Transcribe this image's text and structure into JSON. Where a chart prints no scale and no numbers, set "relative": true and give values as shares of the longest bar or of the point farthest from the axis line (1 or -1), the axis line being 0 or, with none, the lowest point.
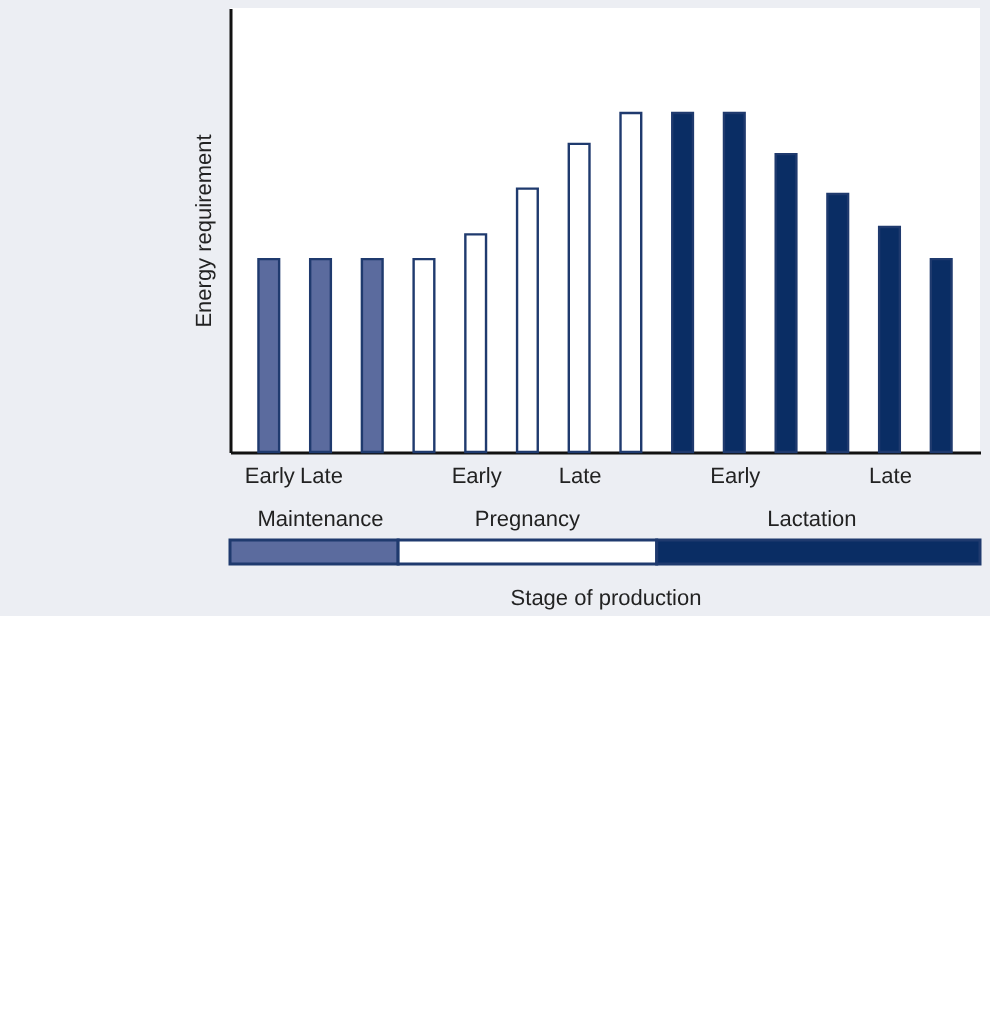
{
  "chart_data": {
    "type": "bar",
    "relative": true,
    "xlabel": "Stage of production",
    "ylabel": "Energy requirement",
    "categories": [
      "Early",
      "Late",
      null,
      null,
      "Early",
      null,
      "Late",
      null,
      null,
      "Early",
      null,
      null,
      "Late",
      null
    ],
    "values": [
      0.569,
      0.569,
      0.569,
      0.569,
      0.642,
      0.777,
      0.909,
      1,
      1,
      1,
      0.879,
      0.761,
      0.664,
      0.569
    ],
    "colors": [
      "#5b6b9e",
      "#5b6b9e",
      "#5b6b9e",
      "#ffffff",
      "#ffffff",
      "#ffffff",
      "#ffffff",
      "#ffffff",
      "#0a2d64",
      "#0a2d64",
      "#0a2d64",
      "#0a2d64",
      "#0a2d64",
      "#0a2d64"
    ],
    "annotations": [
      "Maintenance",
      "Pregnancy",
      "Lactation"
    ],
    "grid": false
  }
}
